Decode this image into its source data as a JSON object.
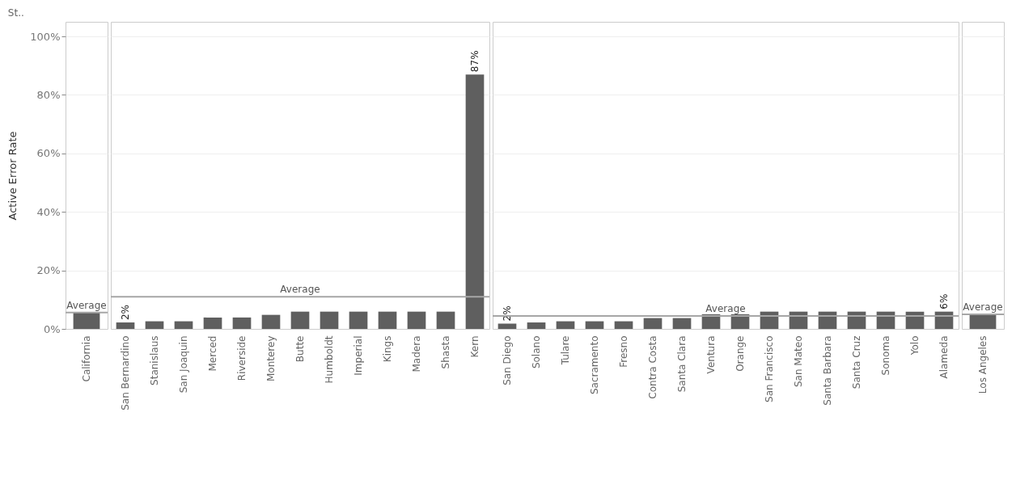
{
  "chart_data": [
    {
      "type": "bar",
      "title": "St..",
      "ylabel": "Active Error Rate",
      "categories": [
        "California"
      ],
      "values": [
        5.6
      ],
      "color": "#5f5f5f",
      "ylim": [
        0,
        105
      ],
      "yticks": [
        {
          "value": 0,
          "label": "0%"
        },
        {
          "value": 20,
          "label": "20%"
        },
        {
          "value": 40,
          "label": "40%"
        },
        {
          "value": 60,
          "label": "60%"
        },
        {
          "value": 80,
          "label": "80%"
        },
        {
          "value": 100,
          "label": "100%"
        }
      ],
      "grid": "y",
      "ref_lines": [
        {
          "axis": "y",
          "value": 5.6,
          "label": "Average",
          "color": "#a6a6a6"
        }
      ]
    },
    {
      "type": "bar",
      "categories": [
        "San Bernardino",
        "Stanislaus",
        "San Joaquin",
        "Merced",
        "Riverside",
        "Monterey",
        "Butte",
        "Humboldt",
        "Imperial",
        "Kings",
        "Madera",
        "Shasta",
        "Kern"
      ],
      "values": [
        2.2,
        2.6,
        2.6,
        3.9,
        3.9,
        4.8,
        5.9,
        5.9,
        5.9,
        5.9,
        5.9,
        5.9,
        87
      ],
      "value_labels": [
        "2%",
        null,
        null,
        null,
        null,
        null,
        null,
        null,
        null,
        null,
        null,
        null,
        "87%"
      ],
      "color": "#5f5f5f",
      "ylim": [
        0,
        105
      ],
      "yticks": [
        0,
        20,
        40,
        60,
        80,
        100
      ],
      "tick_labels": "x",
      "grid": "y",
      "ref_lines": [
        {
          "axis": "y",
          "value": 11,
          "label": "Average",
          "color": "#a6a6a6"
        }
      ]
    },
    {
      "type": "bar",
      "categories": [
        "San Diego",
        "Solano",
        "Tulare",
        "Sacramento",
        "Fresno",
        "Contra Costa",
        "Santa Clara",
        "Ventura",
        "Orange",
        "San Francisco",
        "San Mateo",
        "Santa Barbara",
        "Santa Cruz",
        "Sonoma",
        "Yolo",
        "Alameda"
      ],
      "values": [
        1.8,
        2.2,
        2.6,
        2.6,
        2.6,
        3.7,
        3.7,
        5.0,
        5.0,
        5.9,
        5.9,
        5.9,
        5.9,
        5.9,
        5.9,
        5.9
      ],
      "value_labels": [
        "2%",
        null,
        null,
        null,
        null,
        null,
        null,
        null,
        null,
        null,
        null,
        null,
        null,
        null,
        null,
        "6%"
      ],
      "color": "#5f5f5f",
      "ylim": [
        0,
        105
      ],
      "yticks": [
        0,
        20,
        40,
        60,
        80,
        100
      ],
      "tick_labels": "x",
      "grid": "y",
      "ref_lines": [
        {
          "axis": "y",
          "value": 4.4,
          "label": "Average",
          "color": "#a6a6a6"
        }
      ]
    },
    {
      "type": "bar",
      "categories": [
        "Los Angeles"
      ],
      "values": [
        5.0
      ],
      "color": "#5f5f5f",
      "ylim": [
        0,
        105
      ],
      "yticks": [
        0,
        20,
        40,
        60,
        80,
        100
      ],
      "tick_labels": "x",
      "grid": "y",
      "ref_lines": [
        {
          "axis": "y",
          "value": 5.0,
          "label": "Average",
          "color": "#a6a6a6"
        }
      ]
    }
  ]
}
